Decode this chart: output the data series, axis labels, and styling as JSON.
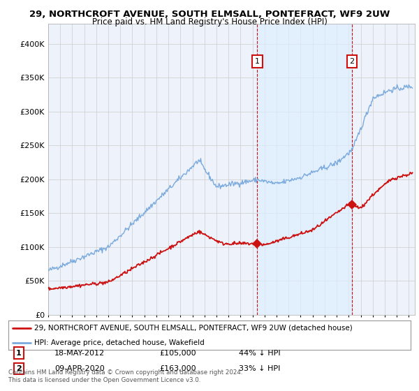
{
  "title": "29, NORTHCROFT AVENUE, SOUTH ELMSALL, PONTEFRACT, WF9 2UW",
  "subtitle": "Price paid vs. HM Land Registry's House Price Index (HPI)",
  "ylabel_ticks": [
    "£0",
    "£50K",
    "£100K",
    "£150K",
    "£200K",
    "£250K",
    "£300K",
    "£350K",
    "£400K"
  ],
  "ytick_values": [
    0,
    50000,
    100000,
    150000,
    200000,
    250000,
    300000,
    350000,
    400000
  ],
  "ylim": [
    0,
    430000
  ],
  "xlim_start": 1995.0,
  "xlim_end": 2025.5,
  "hpi_color": "#7aaadd",
  "price_color": "#cc1111",
  "shade_color": "#ddeeff",
  "marker1_date": 2012.38,
  "marker1_price": 105000,
  "marker2_date": 2020.27,
  "marker2_price": 163000,
  "legend_label1": "29, NORTHCROFT AVENUE, SOUTH ELMSALL, PONTEFRACT, WF9 2UW (detached house)",
  "legend_label2": "HPI: Average price, detached house, Wakefield",
  "table_row1": [
    "1",
    "18-MAY-2012",
    "£105,000",
    "44% ↓ HPI"
  ],
  "table_row2": [
    "2",
    "09-APR-2020",
    "£163,000",
    "33% ↓ HPI"
  ],
  "footer": "Contains HM Land Registry data © Crown copyright and database right 2024.\nThis data is licensed under the Open Government Licence v3.0.",
  "bg_color": "#ffffff",
  "plot_bg_color": "#eef2fa",
  "grid_color": "#cccccc",
  "title_fontsize": 9.5,
  "subtitle_fontsize": 8.5
}
